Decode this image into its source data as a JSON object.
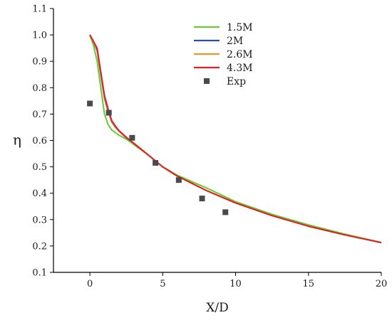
{
  "chart_data": {
    "type": "line",
    "xlabel": "X/D",
    "ylabel": "η",
    "xlim": [
      -2.5,
      20
    ],
    "ylim": [
      0.1,
      1.1
    ],
    "xticks": [
      "0",
      "5",
      "10",
      "15",
      "20"
    ],
    "yticks": [
      "0.1",
      "0.2",
      "0.3",
      "0.4",
      "0.5",
      "0.6",
      "0.7",
      "0.8",
      "0.9",
      "1.0",
      "1.1"
    ],
    "grid": false,
    "legend_position": "top-center",
    "series": [
      {
        "name": "1.5M",
        "kind": "line",
        "color": "#66cc33",
        "x": [
          0,
          0.25,
          0.5,
          0.75,
          1.0,
          1.25,
          1.5,
          1.75,
          2.0,
          2.5,
          3.0,
          4.0,
          5.0,
          6.0,
          8.0,
          10.0,
          12.5,
          15.0,
          17.5,
          20.0
        ],
        "y": [
          1.0,
          0.96,
          0.9,
          0.8,
          0.7,
          0.66,
          0.64,
          0.63,
          0.62,
          0.605,
          0.585,
          0.545,
          0.5,
          0.468,
          0.42,
          0.368,
          0.32,
          0.28,
          0.245,
          0.213
        ]
      },
      {
        "name": "2M",
        "kind": "line",
        "color": "#2a4fa8",
        "x": [
          0,
          0.25,
          0.5,
          0.75,
          1.0,
          1.25,
          1.5,
          1.75,
          2.0,
          2.5,
          3.0,
          4.0,
          5.0,
          6.0,
          8.0,
          10.0,
          12.5,
          15.0,
          17.5,
          20.0
        ],
        "y": [
          1.0,
          0.975,
          0.94,
          0.85,
          0.76,
          0.71,
          0.67,
          0.65,
          0.635,
          0.61,
          0.59,
          0.545,
          0.5,
          0.465,
          0.41,
          0.363,
          0.315,
          0.275,
          0.242,
          0.213
        ]
      },
      {
        "name": "2.6M",
        "kind": "line",
        "color": "#f0922e",
        "x": [
          0,
          0.25,
          0.5,
          0.75,
          1.0,
          1.25,
          1.5,
          1.75,
          2.0,
          2.5,
          3.0,
          4.0,
          5.0,
          6.0,
          8.0,
          10.0,
          12.5,
          15.0,
          17.5,
          20.0
        ],
        "y": [
          1.0,
          0.975,
          0.945,
          0.855,
          0.765,
          0.715,
          0.672,
          0.652,
          0.636,
          0.611,
          0.59,
          0.545,
          0.5,
          0.465,
          0.41,
          0.363,
          0.315,
          0.275,
          0.242,
          0.213
        ]
      },
      {
        "name": "4.3M",
        "kind": "line",
        "color": "#e02020",
        "x": [
          0,
          0.25,
          0.5,
          0.75,
          1.0,
          1.25,
          1.5,
          1.75,
          2.0,
          2.5,
          3.0,
          4.0,
          5.0,
          6.0,
          8.0,
          10.0,
          12.5,
          15.0,
          17.5,
          20.0
        ],
        "y": [
          1.0,
          0.975,
          0.95,
          0.86,
          0.77,
          0.72,
          0.675,
          0.655,
          0.637,
          0.612,
          0.59,
          0.545,
          0.5,
          0.465,
          0.41,
          0.363,
          0.315,
          0.275,
          0.242,
          0.213
        ]
      },
      {
        "name": "Exp",
        "kind": "scatter",
        "color": "#4a4a4a",
        "x": [
          0.0,
          1.3,
          2.9,
          4.5,
          6.1,
          7.7,
          9.3
        ],
        "y": [
          0.74,
          0.705,
          0.61,
          0.515,
          0.45,
          0.38,
          0.328
        ]
      }
    ]
  }
}
